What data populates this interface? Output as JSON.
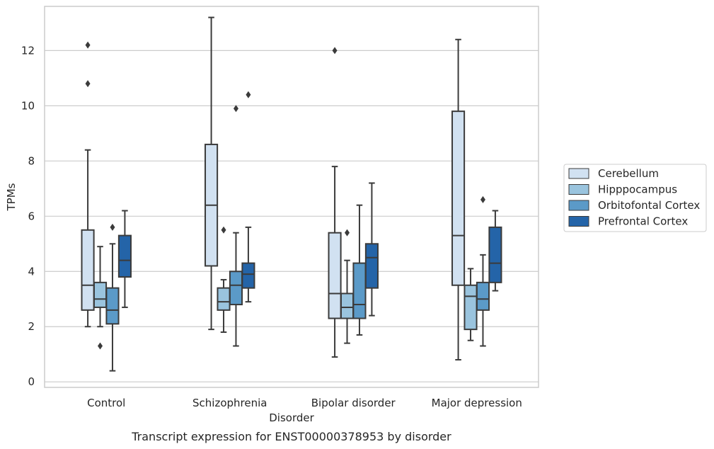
{
  "chart_data": {
    "type": "box",
    "title": "",
    "caption": "Transcript expression for ENST00000378953 by disorder",
    "xlabel": "Disorder",
    "ylabel": "TPMs",
    "ylim": [
      -0.2,
      13.6
    ],
    "yticks": [
      "0",
      "2",
      "4",
      "6",
      "8",
      "10",
      "12"
    ],
    "grid": "horizontal",
    "legend_position": "right",
    "categories": [
      "Control",
      "Schizophrenia",
      "Bipolar disorder",
      "Major depression"
    ],
    "series": [
      {
        "name": "Cerebellum",
        "color": "#d1e1f1",
        "boxes": [
          {
            "whisker_low": 2.0,
            "q1": 2.6,
            "median": 3.5,
            "q3": 5.5,
            "whisker_high": 8.4,
            "outliers": [
              10.8,
              12.2
            ]
          },
          {
            "whisker_low": 1.9,
            "q1": 4.2,
            "median": 6.4,
            "q3": 8.6,
            "whisker_high": 13.2,
            "outliers": []
          },
          {
            "whisker_low": 0.9,
            "q1": 2.3,
            "median": 3.2,
            "q3": 5.4,
            "whisker_high": 7.8,
            "outliers": [
              12.0
            ]
          },
          {
            "whisker_low": 0.8,
            "q1": 3.5,
            "median": 5.3,
            "q3": 9.8,
            "whisker_high": 12.4,
            "outliers": []
          }
        ]
      },
      {
        "name": "Hipppocampus",
        "color": "#9ac4de",
        "boxes": [
          {
            "whisker_low": 2.0,
            "q1": 2.7,
            "median": 3.0,
            "q3": 3.6,
            "whisker_high": 4.9,
            "outliers": [
              1.3
            ]
          },
          {
            "whisker_low": 1.8,
            "q1": 2.6,
            "median": 2.9,
            "q3": 3.4,
            "whisker_high": 3.7,
            "outliers": [
              5.5
            ]
          },
          {
            "whisker_low": 1.4,
            "q1": 2.3,
            "median": 2.7,
            "q3": 3.2,
            "whisker_high": 4.4,
            "outliers": [
              5.4
            ]
          },
          {
            "whisker_low": 1.5,
            "q1": 1.9,
            "median": 3.1,
            "q3": 3.5,
            "whisker_high": 4.1,
            "outliers": []
          }
        ]
      },
      {
        "name": "Orbitofontal Cortex",
        "color": "#5b9ac8",
        "boxes": [
          {
            "whisker_low": 0.4,
            "q1": 2.1,
            "median": 2.6,
            "q3": 3.4,
            "whisker_high": 5.0,
            "outliers": [
              5.6
            ]
          },
          {
            "whisker_low": 1.3,
            "q1": 2.8,
            "median": 3.5,
            "q3": 4.0,
            "whisker_high": 5.4,
            "outliers": [
              9.9
            ]
          },
          {
            "whisker_low": 1.7,
            "q1": 2.3,
            "median": 2.8,
            "q3": 4.3,
            "whisker_high": 6.4,
            "outliers": []
          },
          {
            "whisker_low": 1.3,
            "q1": 2.6,
            "median": 3.0,
            "q3": 3.6,
            "whisker_high": 4.6,
            "outliers": [
              6.6
            ]
          }
        ]
      },
      {
        "name": "Prefrontal Cortex",
        "color": "#2464a8",
        "boxes": [
          {
            "whisker_low": 2.7,
            "q1": 3.8,
            "median": 4.4,
            "q3": 5.3,
            "whisker_high": 6.2,
            "outliers": []
          },
          {
            "whisker_low": 2.9,
            "q1": 3.4,
            "median": 3.9,
            "q3": 4.3,
            "whisker_high": 5.6,
            "outliers": [
              10.4
            ]
          },
          {
            "whisker_low": 2.4,
            "q1": 3.4,
            "median": 4.5,
            "q3": 5.0,
            "whisker_high": 7.2,
            "outliers": []
          },
          {
            "whisker_low": 3.3,
            "q1": 3.6,
            "median": 4.3,
            "q3": 5.6,
            "whisker_high": 6.2,
            "outliers": []
          }
        ]
      }
    ]
  }
}
